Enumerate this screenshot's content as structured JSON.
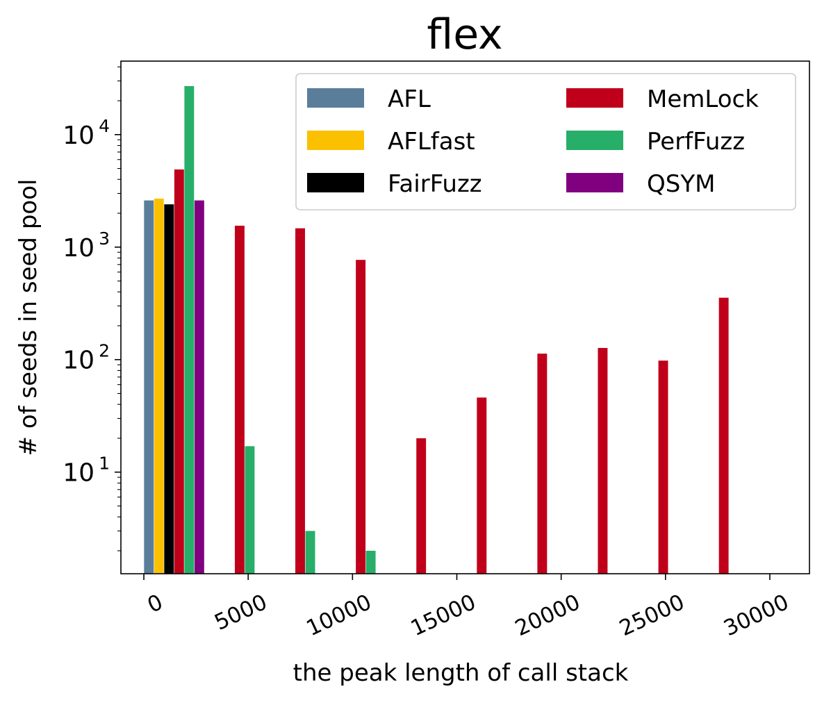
{
  "chart_data": {
    "type": "bar",
    "title": "flex",
    "xlabel": "the peak length of call stack",
    "ylabel": "# of seeds in seed pool",
    "yscale": "log",
    "xlim": [
      -1100,
      31900
    ],
    "ylim": [
      1.25,
      45000
    ],
    "x_ticks": [
      {
        "value": 0,
        "label": "0"
      },
      {
        "value": 5000,
        "label": "5000"
      },
      {
        "value": 10000,
        "label": "10000"
      },
      {
        "value": 15000,
        "label": "15000"
      },
      {
        "value": 20000,
        "label": "20000"
      },
      {
        "value": 25000,
        "label": "25000"
      },
      {
        "value": 30000,
        "label": "30000"
      }
    ],
    "y_ticks": [
      {
        "value": 10,
        "base": "10",
        "exp": "1"
      },
      {
        "value": 100,
        "base": "10",
        "exp": "2"
      },
      {
        "value": 1000,
        "base": "10",
        "exp": "3"
      },
      {
        "value": 10000,
        "base": "10",
        "exp": "4"
      }
    ],
    "bin_width": 2900,
    "legend_position": "top-right",
    "grid": false,
    "series": [
      {
        "name": "AFL",
        "color": "#5a7d9a",
        "bins": [
          0
        ],
        "values": [
          2600
        ]
      },
      {
        "name": "AFLfast",
        "color": "#fbc100",
        "bins": [
          0
        ],
        "values": [
          2700
        ]
      },
      {
        "name": "FairFuzz",
        "color": "#000000",
        "bins": [
          0
        ],
        "values": [
          2400
        ]
      },
      {
        "name": "MemLock",
        "color": "#c0001a",
        "bins": [
          0,
          1,
          2,
          3,
          4,
          5,
          6,
          7,
          8,
          9
        ],
        "values": [
          4900,
          1550,
          1470,
          770,
          20,
          46,
          113,
          127,
          98,
          355
        ]
      },
      {
        "name": "PerfFuzz",
        "color": "#27ae68",
        "bins": [
          0,
          1,
          2,
          3
        ],
        "values": [
          27000,
          17,
          3,
          2
        ]
      },
      {
        "name": "QSYM",
        "color": "#800080",
        "bins": [
          0
        ],
        "values": [
          2600
        ]
      }
    ]
  }
}
